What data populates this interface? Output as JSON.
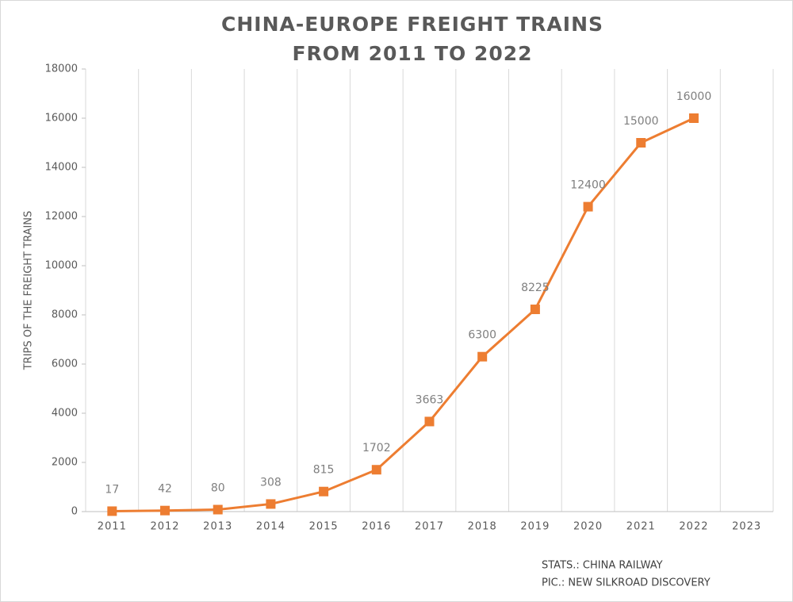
{
  "chart_data": {
    "type": "line",
    "title": [
      "CHINA-EUROPE FREIGHT TRAINS",
      "FROM 2011 TO 2022"
    ],
    "y_label": "TRIPS OF THE FREIGHT TRAINS",
    "notes": [
      "STATS.: CHINA RAILWAY",
      "PIC.: NEW SILKROAD DISCOVERY"
    ],
    "categories": [
      "2011",
      "2012",
      "2013",
      "2014",
      "2015",
      "2016",
      "2017",
      "2018",
      "2019",
      "2020",
      "2021",
      "2022",
      "2023"
    ],
    "series": [
      {
        "name": "Trips",
        "color": "#ed7d31",
        "values": [
          17,
          42,
          80,
          308,
          815,
          1702,
          3663,
          6300,
          8225,
          12400,
          15000,
          16000,
          null
        ]
      }
    ],
    "ylim": [
      0,
      18000
    ],
    "yticks": [
      0,
      2000,
      4000,
      6000,
      8000,
      10000,
      12000,
      14000,
      16000,
      18000
    ],
    "grid": true
  }
}
